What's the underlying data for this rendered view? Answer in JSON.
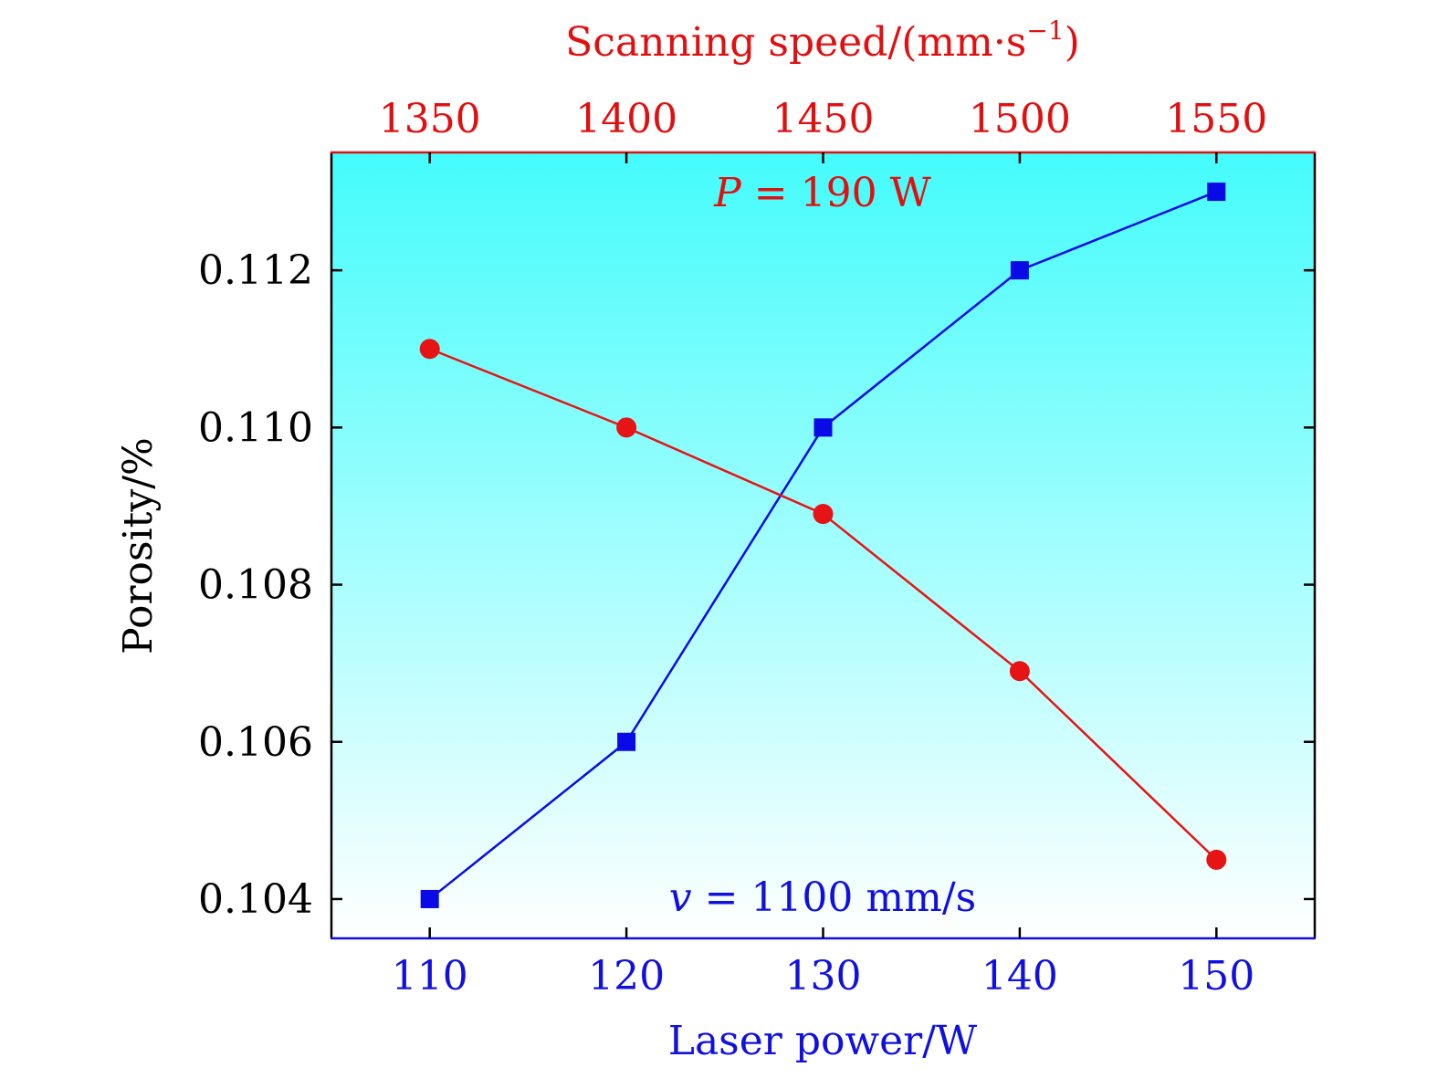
{
  "chart_data": {
    "type": "line",
    "ylabel": "Porosity/%",
    "ylim": [
      0.1035,
      0.1135
    ],
    "yticks": [
      0.104,
      0.106,
      0.108,
      0.11,
      0.112
    ],
    "ytick_labels": [
      "0.104",
      "0.106",
      "0.108",
      "0.110",
      "0.112"
    ],
    "bottom_axis": {
      "label": "Laser power/W",
      "range": [
        105,
        155
      ],
      "ticks": [
        110,
        120,
        130,
        140,
        150
      ],
      "tick_labels": [
        "110",
        "120",
        "130",
        "140",
        "150"
      ],
      "color": "#1010e0"
    },
    "top_axis": {
      "label_text": "Scanning speed/(mm·s",
      "label_sup": "−1",
      "label_close": ")",
      "range": [
        1325,
        1575
      ],
      "ticks": [
        1350,
        1400,
        1450,
        1500,
        1550
      ],
      "tick_labels": [
        "1350",
        "1400",
        "1450",
        "1500",
        "1550"
      ],
      "color": "#e01010"
    },
    "series": [
      {
        "axis": "bottom",
        "marker": "square",
        "color": "#0a0ae6",
        "x": [
          110,
          120,
          130,
          140,
          150
        ],
        "y": [
          0.104,
          0.106,
          0.11,
          0.112,
          0.113
        ]
      },
      {
        "axis": "top",
        "marker": "circle",
        "color": "#e61414",
        "x": [
          1350,
          1400,
          1450,
          1500,
          1550
        ],
        "y": [
          0.111,
          0.11,
          0.1089,
          0.1069,
          0.1045
        ]
      }
    ],
    "annotations": [
      {
        "var": "P",
        "text": " = 190 W",
        "color": "#e01010",
        "position": "top-center"
      },
      {
        "var": "v",
        "text": " = 1100 mm/s",
        "color": "#1010e0",
        "position": "bottom-center"
      }
    ],
    "background_gradient": [
      "#44fcfc",
      "#ffffff"
    ],
    "grid": false
  }
}
